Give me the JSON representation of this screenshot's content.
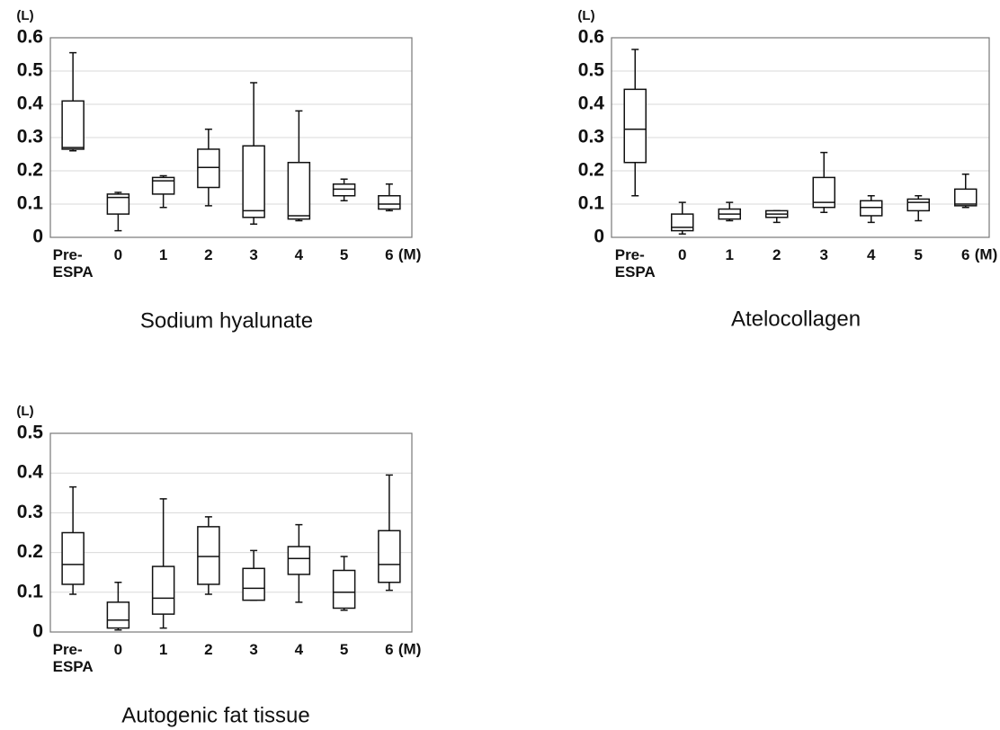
{
  "chart_data": [
    {
      "type": "box",
      "title": "Sodium hyalunate",
      "y_unit": "(L)",
      "x_unit": "(M)",
      "categories": [
        "Pre-\nESPA",
        "0",
        "1",
        "2",
        "3",
        "4",
        "5",
        "6"
      ],
      "min": [
        0.26,
        0.02,
        0.09,
        0.095,
        0.04,
        0.05,
        0.11,
        0.08
      ],
      "q1": [
        0.265,
        0.07,
        0.13,
        0.15,
        0.06,
        0.055,
        0.125,
        0.085
      ],
      "median": [
        0.27,
        0.12,
        0.17,
        0.21,
        0.08,
        0.065,
        0.145,
        0.1
      ],
      "q3": [
        0.41,
        0.13,
        0.18,
        0.265,
        0.275,
        0.225,
        0.16,
        0.125
      ],
      "max": [
        0.555,
        0.135,
        0.185,
        0.325,
        0.465,
        0.38,
        0.175,
        0.16
      ],
      "ylim": [
        0,
        0.6
      ],
      "yticks": [
        0,
        0.1,
        0.2,
        0.3,
        0.4,
        0.5,
        0.6
      ],
      "grid": true,
      "color": "#111111"
    },
    {
      "type": "box",
      "title": "Atelocollagen",
      "y_unit": "(L)",
      "x_unit": "(M)",
      "categories": [
        "Pre-\nESPA",
        "0",
        "1",
        "2",
        "3",
        "4",
        "5",
        "6"
      ],
      "min": [
        0.125,
        0.01,
        0.05,
        0.045,
        0.075,
        0.045,
        0.05,
        0.09
      ],
      "q1": [
        0.225,
        0.02,
        0.055,
        0.06,
        0.09,
        0.065,
        0.08,
        0.095
      ],
      "median": [
        0.325,
        0.03,
        0.07,
        0.07,
        0.105,
        0.09,
        0.105,
        0.1
      ],
      "q3": [
        0.445,
        0.07,
        0.085,
        0.08,
        0.18,
        0.11,
        0.115,
        0.145
      ],
      "max": [
        0.565,
        0.105,
        0.105,
        0.08,
        0.255,
        0.125,
        0.125,
        0.19
      ],
      "ylim": [
        0,
        0.6
      ],
      "yticks": [
        0,
        0.1,
        0.2,
        0.3,
        0.4,
        0.5,
        0.6
      ],
      "grid": true,
      "color": "#111111"
    },
    {
      "type": "box",
      "title": "Autogenic fat tissue",
      "y_unit": "(L)",
      "x_unit": "(M)",
      "categories": [
        "Pre-\nESPA",
        "0",
        "1",
        "2",
        "3",
        "4",
        "5",
        "6"
      ],
      "min": [
        0.095,
        0.005,
        0.01,
        0.095,
        0.08,
        0.075,
        0.055,
        0.105
      ],
      "q1": [
        0.12,
        0.01,
        0.045,
        0.12,
        0.08,
        0.145,
        0.06,
        0.125
      ],
      "median": [
        0.17,
        0.03,
        0.085,
        0.19,
        0.11,
        0.185,
        0.1,
        0.17
      ],
      "q3": [
        0.25,
        0.075,
        0.165,
        0.265,
        0.16,
        0.215,
        0.155,
        0.255
      ],
      "max": [
        0.365,
        0.125,
        0.335,
        0.29,
        0.205,
        0.27,
        0.19,
        0.395
      ],
      "ylim": [
        0,
        0.5
      ],
      "yticks": [
        0,
        0.1,
        0.2,
        0.3,
        0.4,
        0.5
      ],
      "grid": true,
      "color": "#111111"
    }
  ]
}
